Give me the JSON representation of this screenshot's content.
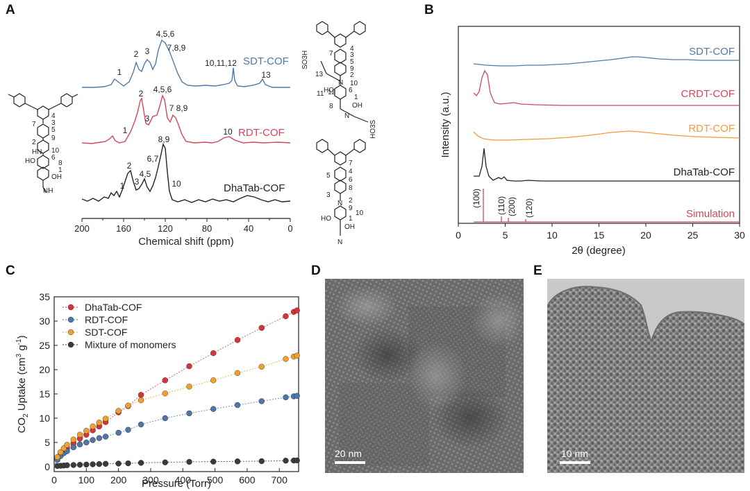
{
  "panel_letters": {
    "a": "A",
    "b": "B",
    "c": "C",
    "d": "D",
    "e": "E"
  },
  "panelA": {
    "xlabel": "Chemical shift (ppm)",
    "ticks": [
      "200",
      "160",
      "120",
      "80",
      "40",
      "0"
    ],
    "trace_labels": {
      "sdt": "SDT-COF",
      "rdt": "RDT-COF",
      "dha": "DhaTab-COF"
    },
    "peak_labels": {
      "sdt_1": "1",
      "sdt_2": "2",
      "sdt_3": "3",
      "sdt_456": "4,5,6",
      "sdt_789": "7,8,9",
      "sdt_101112": "10,11,12",
      "sdt_13": "13",
      "rdt_1": "1",
      "rdt_2": "2",
      "rdt_3": "3",
      "rdt_456": "4,5,6",
      "rdt_789": "7 8,9",
      "rdt_10": "10",
      "dha_1": "1",
      "dha_2": "2",
      "dha_3": "3",
      "dha_45": "4,5",
      "dha_67": "6,7",
      "dha_89": "8,9",
      "dha_10": "10"
    },
    "colors": {
      "sdt": "#4f7aa6",
      "rdt": "#d4455d",
      "dha": "#222222"
    },
    "structure_labels": {
      "left": [
        "4",
        "3",
        "7",
        "5",
        "2",
        "9",
        "HN",
        "10",
        "6",
        "8",
        "HO",
        "1",
        "OH",
        "NH"
      ],
      "right_top": [
        "4",
        "3",
        "7",
        "5",
        "9",
        "2",
        "N",
        "10",
        "SO3H",
        "13",
        "11",
        "12",
        "6",
        "1",
        "HO",
        "OH",
        "8",
        "N",
        "HO3S"
      ],
      "right_bottom": [
        "7",
        "4",
        "5",
        "6",
        "3",
        "8",
        "N",
        "2",
        "9",
        "10",
        "HO",
        "1",
        "OH",
        "N"
      ]
    }
  },
  "panelB": {
    "xlabel": "2θ (degree)",
    "ylabel": "Intensity (a.u.)",
    "ticks": [
      "0",
      "5",
      "10",
      "15",
      "20",
      "25",
      "30"
    ],
    "trace_labels": {
      "sdt": "SDT-COF",
      "crdt": "CRDT-COF",
      "rdt": "RDT-COF",
      "dha": "DhaTab-COF",
      "sim": "Simulation"
    },
    "peak_labels": {
      "p100": "(100)",
      "p110": "(110)",
      "p200": "(200)",
      "p120": "(120)"
    },
    "colors": {
      "sdt": "#4f7aa6",
      "crdt": "#d4455d",
      "rdt": "#f39a3c",
      "dha": "#222222",
      "sim": "#d4455d"
    }
  },
  "panelD": {
    "scalebar": "20 nm"
  },
  "panelE": {
    "scalebar": "10 nm"
  },
  "chart_data": [
    {
      "type": "scatter",
      "xlabel": "Pressure (Torr)",
      "ylabel": "CO2 Uptake (cm-3 g-1)",
      "ylabel_main": "CO",
      "ylabel_sub": "2",
      "ylabel_tail": " Uptake (cm",
      "ylabel_sup1": "3",
      "ylabel_mid": " g",
      "ylabel_sup2": "-1",
      "ylabel_end": ")",
      "xlim": [
        0,
        760
      ],
      "ylim": [
        -1,
        35
      ],
      "xticks": [
        0,
        100,
        200,
        300,
        400,
        500,
        600,
        700
      ],
      "yticks": [
        0,
        5,
        10,
        15,
        20,
        25,
        30,
        35
      ],
      "legend_position": "top-left",
      "series": [
        {
          "name": "DhaTab-COF",
          "color": "#d6343a",
          "x": [
            10,
            20,
            30,
            40,
            60,
            80,
            100,
            120,
            140,
            160,
            200,
            230,
            270,
            345,
            420,
            495,
            570,
            645,
            720,
            745,
            755
          ],
          "y": [
            1.8,
            2.6,
            3.2,
            3.8,
            4.8,
            5.8,
            6.6,
            7.5,
            8.3,
            9.2,
            11.2,
            12.5,
            14.8,
            17.8,
            20.7,
            23.4,
            26.1,
            28.6,
            31.0,
            31.9,
            32.2
          ]
        },
        {
          "name": "RDT-COF",
          "color": "#4f76a6",
          "x": [
            10,
            20,
            30,
            40,
            60,
            80,
            100,
            120,
            140,
            160,
            200,
            230,
            270,
            345,
            420,
            495,
            570,
            645,
            720,
            745,
            755
          ],
          "y": [
            1.4,
            2.2,
            2.8,
            3.2,
            4.0,
            4.6,
            5.0,
            5.5,
            5.9,
            6.2,
            7.0,
            7.6,
            8.7,
            10.0,
            11.0,
            11.9,
            12.7,
            13.5,
            14.3,
            14.5,
            14.6
          ]
        },
        {
          "name": "SDT-COF",
          "color": "#f0a030",
          "x": [
            10,
            20,
            30,
            40,
            60,
            80,
            100,
            120,
            140,
            160,
            200,
            230,
            270,
            345,
            420,
            495,
            570,
            645,
            720,
            745,
            755
          ],
          "y": [
            2.0,
            3.0,
            3.8,
            4.5,
            5.6,
            6.6,
            7.4,
            8.3,
            9.1,
            9.9,
            11.5,
            12.6,
            13.7,
            15.1,
            16.5,
            17.8,
            19.3,
            20.6,
            22.2,
            22.7,
            22.9
          ]
        },
        {
          "name": "Mixture of monomers",
          "color": "#3a3a3a",
          "x": [
            10,
            20,
            30,
            40,
            60,
            80,
            100,
            120,
            140,
            160,
            200,
            230,
            270,
            345,
            420,
            495,
            570,
            645,
            720,
            745,
            755
          ],
          "y": [
            0.15,
            0.2,
            0.25,
            0.3,
            0.35,
            0.4,
            0.45,
            0.5,
            0.55,
            0.6,
            0.65,
            0.7,
            0.8,
            0.9,
            1.0,
            1.05,
            1.1,
            1.15,
            1.25,
            1.28,
            1.3
          ]
        }
      ]
    }
  ]
}
